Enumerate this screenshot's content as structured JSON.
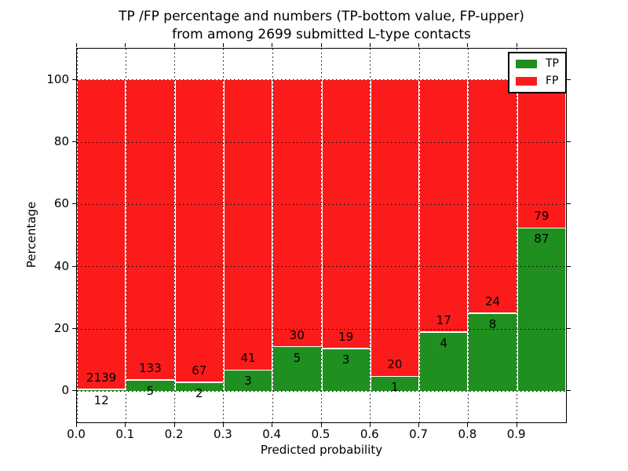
{
  "figure": {
    "title_line1": "TP /FP percentage and numbers (TP-bottom value, FP-upper)",
    "title_line2": "from among 2699 submitted L-type contacts"
  },
  "chart_data": {
    "type": "bar",
    "stacked": true,
    "normalized_percent": true,
    "title": "TP /FP percentage and numbers (TP-bottom value, FP-upper) from among 2699 submitted L-type contacts",
    "xlabel": "Predicted probability",
    "ylabel": "Percentage",
    "xlim": [
      0,
      1
    ],
    "ylim": [
      -10,
      110
    ],
    "bin_width": 0.1,
    "bin_starts": [
      0,
      0.1,
      0.2,
      0.3,
      0.4,
      0.5,
      0.6,
      0.7,
      0.8,
      0.9
    ],
    "x_tick_values": [
      0,
      0.1,
      0.2,
      0.3,
      0.4,
      0.5,
      0.6,
      0.7,
      0.8,
      0.9
    ],
    "x_tick_labels": [
      "0.0",
      "0.1",
      "0.2",
      "0.3",
      "0.4",
      "0.5",
      "0.6",
      "0.7",
      "0.8",
      "0.9"
    ],
    "y_tick_values": [
      0,
      20,
      40,
      60,
      80,
      100
    ],
    "y_tick_labels": [
      "0",
      "20",
      "40",
      "60",
      "80",
      "100"
    ],
    "grid": "dotted, both axes, drawn over bars",
    "bar_edge_color": "#ffffff",
    "series": [
      {
        "name": "TP",
        "color": "#1f8f1f",
        "counts": [
          12,
          5,
          2,
          3,
          5,
          3,
          1,
          4,
          8,
          87
        ]
      },
      {
        "name": "FP",
        "color": "#fb1b1b",
        "counts": [
          2139,
          133,
          67,
          41,
          30,
          19,
          20,
          17,
          24,
          79
        ]
      }
    ],
    "tp_percent": [
      0.56,
      3.62,
      2.9,
      6.82,
      14.29,
      13.64,
      4.76,
      19.05,
      25.0,
      52.41
    ],
    "fp_percent": [
      99.44,
      96.38,
      97.1,
      93.18,
      85.71,
      86.36,
      95.24,
      80.95,
      75.0,
      47.59
    ],
    "total_submitted": 2699,
    "legend": {
      "position": "upper right",
      "entries": [
        {
          "label": "TP",
          "color": "#1f8f1f"
        },
        {
          "label": "FP",
          "color": "#fb1b1b"
        }
      ]
    }
  }
}
